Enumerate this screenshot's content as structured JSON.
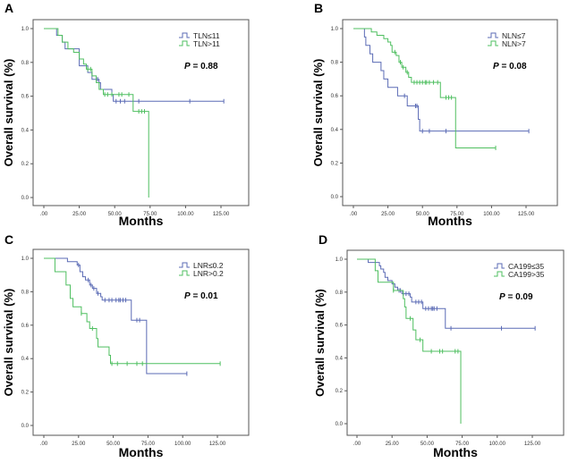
{
  "chart_data": [
    {
      "type": "line",
      "panel_label": "A",
      "xlabel": "Months",
      "ylabel": "Overall survival (%)",
      "xlim": [
        0,
        150
      ],
      "ylim": [
        0,
        1.0
      ],
      "xticks": [
        ".00",
        "25.00",
        "50.00",
        "75.00",
        "100.00",
        "125.00"
      ],
      "xtick_values": [
        0,
        25,
        50,
        75,
        100,
        125
      ],
      "yticks": [
        "0.0",
        "0.2",
        "0.4",
        "0.6",
        "0.8",
        "1.0"
      ],
      "ytick_values": [
        0,
        0.2,
        0.4,
        0.6,
        0.8,
        1.0
      ],
      "p_label": "P",
      "p_value": "= 0.88",
      "legend_position": "top-right",
      "series": [
        {
          "name": "TLN≤11",
          "color": "#5b6bb5",
          "steps": [
            [
              0,
              1.0
            ],
            [
              9,
              0.96
            ],
            [
              13,
              0.92
            ],
            [
              15,
              0.88
            ],
            [
              25,
              0.78
            ],
            [
              31,
              0.74
            ],
            [
              34,
              0.7
            ],
            [
              39,
              0.68
            ],
            [
              40,
              0.64
            ],
            [
              48,
              0.61
            ],
            [
              49,
              0.57
            ]
          ],
          "end": 127,
          "censored": [
            37,
            38,
            51,
            54,
            57,
            67,
            103,
            127
          ]
        },
        {
          "name": "TLN>11",
          "color": "#4fbf60",
          "steps": [
            [
              0,
              1.0
            ],
            [
              10,
              0.96
            ],
            [
              13,
              0.92
            ],
            [
              17,
              0.88
            ],
            [
              21,
              0.86
            ],
            [
              25,
              0.82
            ],
            [
              28,
              0.79
            ],
            [
              30,
              0.76
            ],
            [
              34,
              0.72
            ],
            [
              37,
              0.68
            ],
            [
              39,
              0.64
            ],
            [
              42,
              0.61
            ],
            [
              48,
              0.61
            ],
            [
              63,
              0.51
            ],
            [
              74,
              0.0
            ]
          ],
          "end": 74,
          "censored": [
            31,
            33,
            43,
            45,
            48,
            53,
            55,
            60,
            67,
            69,
            71
          ]
        }
      ]
    },
    {
      "type": "line",
      "panel_label": "B",
      "xlabel": "Months",
      "ylabel": "Overall survival (%)",
      "xlim": [
        0,
        150
      ],
      "ylim": [
        0,
        1.0
      ],
      "xticks": [
        ".00",
        "25.00",
        "50.00",
        "75.00",
        "100.00",
        "125.00"
      ],
      "xtick_values": [
        0,
        25,
        50,
        75,
        100,
        125
      ],
      "yticks": [
        "0.0",
        "0.2",
        "0.4",
        "0.6",
        "0.8",
        "1.0"
      ],
      "ytick_values": [
        0,
        0.2,
        0.4,
        0.6,
        0.8,
        1.0
      ],
      "p_label": "P",
      "p_value": "= 0.08",
      "legend_position": "top-right",
      "series": [
        {
          "name": "NLN≤7",
          "color": "#5b6bb5",
          "steps": [
            [
              0,
              1.0
            ],
            [
              8,
              0.95
            ],
            [
              9,
              0.9
            ],
            [
              12,
              0.85
            ],
            [
              14,
              0.8
            ],
            [
              20,
              0.75
            ],
            [
              22,
              0.7
            ],
            [
              25,
              0.65
            ],
            [
              32,
              0.6
            ],
            [
              39,
              0.54
            ],
            [
              47,
              0.46
            ],
            [
              48,
              0.39
            ]
          ],
          "end": 127,
          "censored": [
            37,
            45,
            46,
            50,
            55,
            67,
            127
          ]
        },
        {
          "name": "NLN>7",
          "color": "#4fbf60",
          "steps": [
            [
              0,
              1.0
            ],
            [
              13,
              0.98
            ],
            [
              17,
              0.96
            ],
            [
              22,
              0.94
            ],
            [
              25,
              0.92
            ],
            [
              27,
              0.9
            ],
            [
              28,
              0.86
            ],
            [
              31,
              0.84
            ],
            [
              33,
              0.8
            ],
            [
              35,
              0.77
            ],
            [
              38,
              0.74
            ],
            [
              40,
              0.71
            ],
            [
              42,
              0.68
            ],
            [
              63,
              0.59
            ],
            [
              74,
              0.29
            ]
          ],
          "end": 103,
          "censored": [
            30,
            34,
            36,
            39,
            44,
            46,
            48,
            50,
            52,
            53,
            55,
            58,
            61,
            67,
            69,
            71,
            103
          ]
        }
      ]
    },
    {
      "type": "line",
      "panel_label": "C",
      "xlabel": "Months",
      "ylabel": "Overall survival (%)",
      "xlim": [
        0,
        150
      ],
      "ylim": [
        0,
        1.0
      ],
      "xticks": [
        ".00",
        "25.00",
        "50.00",
        "75.00",
        "100.00",
        "125.00"
      ],
      "xtick_values": [
        0,
        25,
        50,
        75,
        100,
        125
      ],
      "yticks": [
        "0.0",
        "0.2",
        "0.4",
        "0.6",
        "0.8",
        "1.0"
      ],
      "ytick_values": [
        0,
        0.2,
        0.4,
        0.6,
        0.8,
        1.0
      ],
      "p_label": "P",
      "p_value": "= 0.01",
      "legend_position": "top-right",
      "series": [
        {
          "name": "LNR≤0.2",
          "color": "#5b6bb5",
          "steps": [
            [
              0,
              1.0
            ],
            [
              17,
              0.98
            ],
            [
              24,
              0.96
            ],
            [
              26,
              0.92
            ],
            [
              28,
              0.89
            ],
            [
              30,
              0.87
            ],
            [
              33,
              0.84
            ],
            [
              35,
              0.82
            ],
            [
              38,
              0.79
            ],
            [
              41,
              0.77
            ],
            [
              42,
              0.75
            ],
            [
              63,
              0.63
            ],
            [
              74,
              0.31
            ]
          ],
          "end": 103,
          "censored": [
            25,
            32,
            34,
            36,
            39,
            44,
            47,
            49,
            52,
            54,
            55,
            57,
            59,
            67,
            69,
            103
          ]
        },
        {
          "name": "LNR>0.2",
          "color": "#4fbf60",
          "steps": [
            [
              0,
              1.0
            ],
            [
              8,
              0.92
            ],
            [
              16,
              0.84
            ],
            [
              19,
              0.76
            ],
            [
              21,
              0.71
            ],
            [
              27,
              0.67
            ],
            [
              31,
              0.62
            ],
            [
              33,
              0.58
            ],
            [
              38,
              0.52
            ],
            [
              39,
              0.47
            ],
            [
              47,
              0.42
            ],
            [
              48,
              0.37
            ]
          ],
          "end": 127,
          "censored": [
            27,
            35,
            49,
            53,
            60,
            67,
            71,
            127
          ]
        }
      ]
    },
    {
      "type": "line",
      "panel_label": "D",
      "xlabel": "Months",
      "ylabel": "Overall survival (%)",
      "xlim": [
        0,
        150
      ],
      "ylim": [
        0,
        1.0
      ],
      "xticks": [
        ".00",
        "25.00",
        "50.00",
        "75.00",
        "100.00",
        "125.00"
      ],
      "xtick_values": [
        0,
        25,
        50,
        75,
        100,
        125
      ],
      "yticks": [
        "0.0",
        "0.2",
        "0.4",
        "0.6",
        "0.8",
        "1.0"
      ],
      "ytick_values": [
        0,
        0.2,
        0.4,
        0.6,
        0.8,
        1.0
      ],
      "p_label": "P",
      "p_value": "= 0.09",
      "legend_position": "top-right",
      "series": [
        {
          "name": "CA199≤35",
          "color": "#5b6bb5",
          "steps": [
            [
              0,
              1.0
            ],
            [
              8,
              0.98
            ],
            [
              16,
              0.96
            ],
            [
              17,
              0.94
            ],
            [
              19,
              0.92
            ],
            [
              20,
              0.89
            ],
            [
              22,
              0.87
            ],
            [
              25,
              0.85
            ],
            [
              27,
              0.83
            ],
            [
              29,
              0.81
            ],
            [
              32,
              0.79
            ],
            [
              38,
              0.77
            ],
            [
              39,
              0.74
            ],
            [
              47,
              0.7
            ],
            [
              63,
              0.58
            ]
          ],
          "end": 127,
          "censored": [
            30,
            31,
            33,
            35,
            37,
            42,
            44,
            46,
            49,
            51,
            53,
            54,
            55,
            57,
            67,
            103,
            127
          ]
        },
        {
          "name": "CA199>35",
          "color": "#4fbf60",
          "steps": [
            [
              0,
              1.0
            ],
            [
              13,
              0.93
            ],
            [
              15,
              0.86
            ],
            [
              26,
              0.81
            ],
            [
              33,
              0.76
            ],
            [
              34,
              0.71
            ],
            [
              35,
              0.64
            ],
            [
              40,
              0.57
            ],
            [
              42,
              0.51
            ],
            [
              47,
              0.44
            ],
            [
              74,
              0.0
            ]
          ],
          "end": 74,
          "censored": [
            26,
            38,
            45,
            53,
            59,
            61,
            70,
            72
          ]
        }
      ]
    }
  ]
}
